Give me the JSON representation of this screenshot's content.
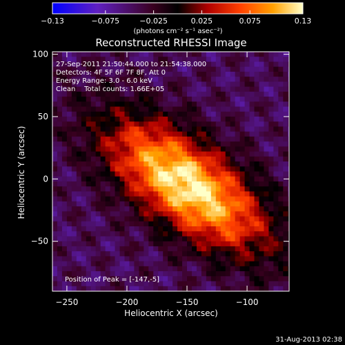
{
  "chart_data": {
    "type": "heatmap",
    "title": "Reconstructed RHESSI Image",
    "xlabel": "Heliocentric X (arcsec)",
    "ylabel": "Heliocentric Y (arcsec)",
    "xlim": [
      -262,
      -65
    ],
    "ylim": [
      -90,
      102
    ],
    "x_ticks": [
      -250,
      -200,
      -150,
      -100
    ],
    "y_ticks": [
      -50,
      0,
      50,
      100
    ],
    "x_tick_labels": [
      "−250",
      "−200",
      "−150",
      "−100"
    ],
    "y_tick_labels": [
      "−50",
      "0",
      "50",
      "100"
    ],
    "annotations": [
      "27-Sep-2011 21:50:44.000 to 21:54:38.000",
      "Detectors: 4F 5F 6F 7F 8F, Att 0",
      "Energy Range: 3.0 - 6.0 keV",
      "Clean    Total counts: 1.66E+05"
    ],
    "peak_label": "Position of Peak = [-147,-5]",
    "peak_position": [
      -147,
      -5
    ],
    "colorbar": {
      "min": -0.13,
      "max": 0.13,
      "ticks": [
        -0.13,
        -0.075,
        -0.025,
        0.025,
        0.075,
        0.13
      ],
      "tick_labels": [
        "−0.13",
        "−0.075",
        "−0.025",
        "0.025",
        "0.075",
        "0.13"
      ],
      "units_label": "(photons cm⁻² s⁻¹ asec⁻²)"
    },
    "pixel_size_arcsec": 4,
    "source_model": {
      "center": [
        -150,
        -5
      ],
      "peak": 0.13,
      "major_axis_deg": 145,
      "sigma_major": 55,
      "sigma_minor": 24,
      "background": -0.045
    }
  },
  "footer": {
    "timestamp": "31-Aug-2013 02:38"
  }
}
